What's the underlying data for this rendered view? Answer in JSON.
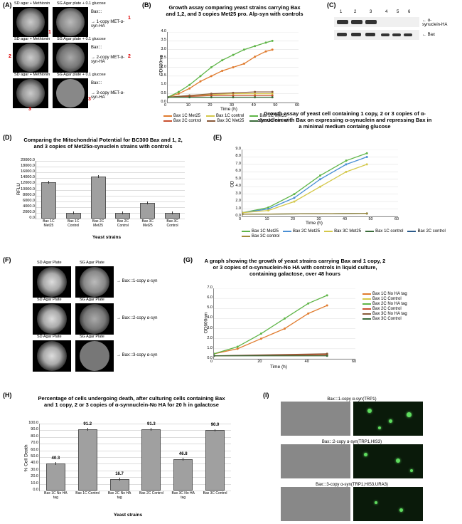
{
  "panels": {
    "A": "(A)",
    "B": "(B)",
    "C": "(C)",
    "D": "(D)",
    "E": "(E)",
    "F": "(F)",
    "G": "(G)",
    "H": "(H)",
    "I": "(I)"
  },
  "A": {
    "plate_titles": [
      "SD agar + Methionin",
      "SG Agar plate + 0.1 glucose",
      "SD agar + Methionin",
      "SG Agar plate + 0.1 glucose",
      "SD agar + Methionin",
      "SG Agar plate + 0.1 glucose"
    ],
    "arrows": [
      "Bax:::",
      "1-copy MET-α-syn-HA",
      "Bax:::",
      "2-copy MET-α-syn-HA",
      "Bax:::",
      "3-copy MET-α-syn-HA"
    ]
  },
  "B": {
    "title": "Growth assay comparing yeast strains carrying Bax and 1,2, and 3 copies  Met25 pro. Alp-syn with controls",
    "ylabel": "OD600nm",
    "xlabel": "Time (h)",
    "ylim": [
      0,
      4.0
    ],
    "ytick_step": 0.5,
    "xlim": [
      0,
      60
    ],
    "xtick_step": 10,
    "series": [
      {
        "name": "Bax 1C Met25",
        "color": "#e07b2e",
        "values": [
          [
            0,
            0.3
          ],
          [
            5,
            0.5
          ],
          [
            10,
            0.8
          ],
          [
            15,
            1.2
          ],
          [
            20,
            1.5
          ],
          [
            25,
            1.8
          ],
          [
            30,
            2.0
          ],
          [
            35,
            2.2
          ],
          [
            40,
            2.6
          ],
          [
            45,
            2.9
          ],
          [
            48,
            3.0
          ]
        ]
      },
      {
        "name": "Bax 1C control",
        "color": "#d4c84a",
        "values": [
          [
            0,
            0.3
          ],
          [
            10,
            0.4
          ],
          [
            20,
            0.45
          ],
          [
            30,
            0.5
          ],
          [
            40,
            0.5
          ],
          [
            48,
            0.5
          ]
        ]
      },
      {
        "name": "Bax 2C Met25",
        "color": "#5fb548",
        "values": [
          [
            0,
            0.3
          ],
          [
            5,
            0.6
          ],
          [
            10,
            1.0
          ],
          [
            15,
            1.5
          ],
          [
            20,
            2.0
          ],
          [
            25,
            2.4
          ],
          [
            30,
            2.7
          ],
          [
            35,
            3.0
          ],
          [
            40,
            3.2
          ],
          [
            45,
            3.4
          ],
          [
            48,
            3.5
          ]
        ]
      },
      {
        "name": "Bax 2C control",
        "color": "#c94f2e",
        "values": [
          [
            0,
            0.3
          ],
          [
            10,
            0.35
          ],
          [
            20,
            0.4
          ],
          [
            30,
            0.4
          ],
          [
            40,
            0.4
          ],
          [
            48,
            0.4
          ]
        ]
      },
      {
        "name": "Bax 3C Met25",
        "color": "#8a5a3a",
        "values": [
          [
            0,
            0.3
          ],
          [
            10,
            0.4
          ],
          [
            20,
            0.5
          ],
          [
            30,
            0.55
          ],
          [
            40,
            0.6
          ],
          [
            48,
            0.6
          ]
        ]
      },
      {
        "name": "Bax 3C control",
        "color": "#3a6b3a",
        "values": [
          [
            0,
            0.3
          ],
          [
            10,
            0.3
          ],
          [
            20,
            0.3
          ],
          [
            30,
            0.3
          ],
          [
            40,
            0.3
          ],
          [
            48,
            0.3
          ]
        ]
      }
    ]
  },
  "C": {
    "lanes": [
      "1",
      "2",
      "3",
      "4",
      "5",
      "6"
    ],
    "labels": [
      "α-synuclein-HA",
      "Bax"
    ]
  },
  "D": {
    "title": "Comparing the Mitochondrial Potential for BC300 Bax and 1, 2, and 3 copies of Met25α-synuclein strains with controls",
    "ylabel": "RFLU",
    "xlabel": "Yeast strains",
    "ylim": [
      0,
      20000
    ],
    "ytick_step": 2000,
    "categories": [
      "Bax 1C Met25",
      "Bax 1C Control",
      "Bax 2C Met25",
      "Bax 2C Control",
      "Bax 3C Met25",
      "Bax 3C Control"
    ],
    "values": [
      12500,
      2000,
      14500,
      2000,
      5500,
      2000
    ],
    "bar_color": "#a0a0a0",
    "error": 500
  },
  "E": {
    "title": "Growth assay of yeast cell containing 1 copy, 2 or 3 copies of α-synuclein with Bax on expressing  α-synuclein and repressing Bax in a minimal medium containg glucose",
    "ylabel": "OD",
    "xlabel": "Time (h)",
    "ylim": [
      0,
      9
    ],
    "ytick_step": 1,
    "xlim": [
      0,
      60
    ],
    "xtick_step": 10,
    "series": [
      {
        "name": "Bax 1C Met25",
        "color": "#5fb548",
        "values": [
          [
            0,
            0.5
          ],
          [
            10,
            1.2
          ],
          [
            20,
            3.0
          ],
          [
            30,
            5.5
          ],
          [
            40,
            7.5
          ],
          [
            48,
            8.5
          ]
        ]
      },
      {
        "name": "Bax 2C Met25",
        "color": "#4a8fd4",
        "values": [
          [
            0,
            0.5
          ],
          [
            10,
            1.0
          ],
          [
            20,
            2.5
          ],
          [
            30,
            5.0
          ],
          [
            40,
            7.0
          ],
          [
            48,
            8.0
          ]
        ]
      },
      {
        "name": "Bax 3C Met25",
        "color": "#d4c84a",
        "values": [
          [
            0,
            0.5
          ],
          [
            10,
            0.8
          ],
          [
            20,
            2.0
          ],
          [
            30,
            4.0
          ],
          [
            40,
            6.0
          ],
          [
            48,
            7.0
          ]
        ]
      },
      {
        "name": "Bax 1C control",
        "color": "#3a6b3a",
        "values": [
          [
            0,
            0.3
          ],
          [
            48,
            0.4
          ]
        ]
      },
      {
        "name": "Bax 2C control",
        "color": "#2a5a8a",
        "values": [
          [
            0,
            0.3
          ],
          [
            48,
            0.4
          ]
        ]
      },
      {
        "name": "Bax 3C control",
        "color": "#a08a3a",
        "values": [
          [
            0,
            0.3
          ],
          [
            48,
            0.4
          ]
        ]
      }
    ]
  },
  "F": {
    "plate_titles": [
      "SD Agar Plate",
      "SG Agar Plate",
      "SD Agar Plate",
      "SG Agar Plate",
      "SD Agar Plate",
      "SG Agar Plate"
    ],
    "arrows": [
      "Bax:::1-copy α-syn",
      "Bax:::2-copy α-syn",
      "Bax:::3-copy α-syn"
    ]
  },
  "G": {
    "title": "A graph showing the growth of yeast strains carrying Bax and 1 copy, 2 or 3 copies of α-synnuclein-No HA with controls in liquid culture, containing galactose, over 48 hours",
    "ylabel": "OD600nm",
    "xlabel": "Time (h)",
    "ylim": [
      0,
      7
    ],
    "ytick_step": 1,
    "xlim": [
      0,
      60
    ],
    "xtick_step": 20,
    "series": [
      {
        "name": "Bax 1C No HA tag",
        "color": "#e07b2e",
        "values": [
          [
            0,
            0.5
          ],
          [
            10,
            1.0
          ],
          [
            20,
            2.0
          ],
          [
            30,
            3.0
          ],
          [
            40,
            4.5
          ],
          [
            48,
            5.3
          ]
        ]
      },
      {
        "name": "Bax 1C Control",
        "color": "#d4c84a",
        "values": [
          [
            0,
            0.3
          ],
          [
            48,
            0.4
          ]
        ]
      },
      {
        "name": "Bax 2C No HA tag",
        "color": "#5fb548",
        "values": [
          [
            0,
            0.5
          ],
          [
            10,
            1.2
          ],
          [
            20,
            2.5
          ],
          [
            30,
            4.0
          ],
          [
            40,
            5.5
          ],
          [
            48,
            6.3
          ]
        ]
      },
      {
        "name": "Bax 2C Control",
        "color": "#c94f2e",
        "values": [
          [
            0,
            0.3
          ],
          [
            48,
            0.4
          ]
        ]
      },
      {
        "name": "Bax 3C No HA tag",
        "color": "#8a5a3a",
        "values": [
          [
            0,
            0.3
          ],
          [
            48,
            0.5
          ]
        ]
      },
      {
        "name": "Bax 3C Control",
        "color": "#3a6b3a",
        "values": [
          [
            0,
            0.3
          ],
          [
            48,
            0.3
          ]
        ]
      }
    ]
  },
  "H": {
    "title": "Percentage of cells undergoing death, after culturing cells containing Bax and 1 copy, 2 or 3 copies of α-synnuclein-No HA for 20 h in galactose",
    "ylabel": "% Cell Death",
    "xlabel": "Yeast strains",
    "ylim": [
      0,
      100
    ],
    "ytick_step": 10,
    "categories": [
      "Bax 1C No HA tag",
      "Bax 1C Control",
      "Bax 2C No HA tag",
      "Bax 2C Control",
      "Bax 3C No HA tag",
      "Bax 3C Control"
    ],
    "values": [
      40.3,
      91.2,
      16.7,
      91.3,
      46.8,
      90.0
    ],
    "value_labels": [
      "40.3",
      "91.2",
      "16.7",
      "91.3",
      "46.8",
      "90.0"
    ],
    "bar_color": "#a0a0a0"
  },
  "I": {
    "labels": [
      "Bax:::1-copy α-syn(TRP1)",
      "Bax:::2-copy α-syn(TRP1,HIS3)",
      "Bax:::3-copy α-syn(TRP1,HIS3,URA3)"
    ]
  }
}
